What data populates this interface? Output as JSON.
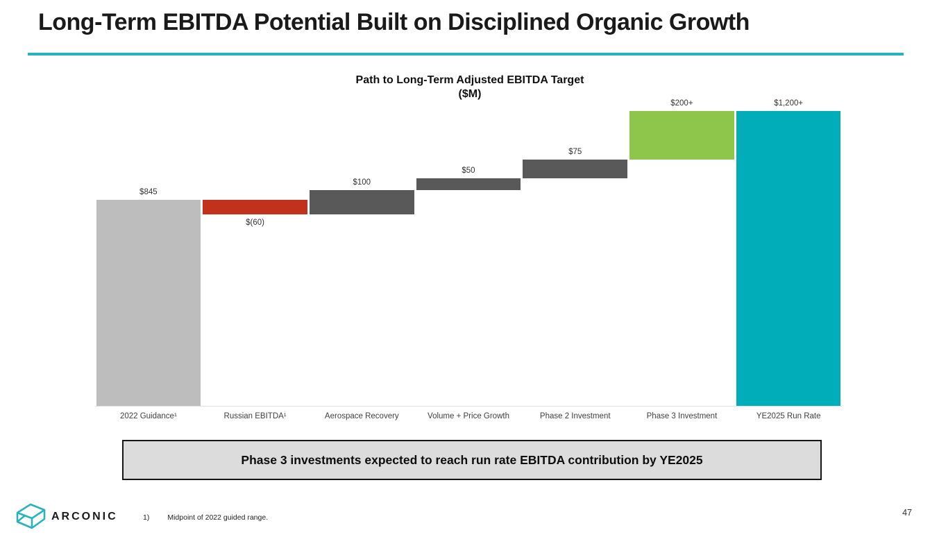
{
  "slide": {
    "title": "Long-Term EBITDA Potential Built on Disciplined Organic Growth",
    "accent_color": "#29b3be",
    "callout": "Phase 3 investments expected to reach run rate EBITDA contribution by YE2025",
    "footnote_marker": "1)",
    "footnote_text": "Midpoint of 2022 guided range.",
    "brand": "ARCONIC",
    "page_number": "47"
  },
  "chart_data": {
    "type": "bar",
    "subtype": "waterfall",
    "title": "Path to Long-Term Adjusted EBITDA Target",
    "subtitle": "($M)",
    "ylim": [
      0,
      1210
    ],
    "grid": false,
    "legend": false,
    "bars": [
      {
        "category": "2022 Guidance¹",
        "value": 845,
        "kind": "total",
        "label": "$845",
        "label_position": "above",
        "color": "#bdbdbd"
      },
      {
        "category": "Russian EBITDA¹",
        "value": -60,
        "kind": "delta",
        "label": "$(60)",
        "label_position": "below",
        "color": "#c2311b"
      },
      {
        "category": "Aerospace Recovery",
        "value": 100,
        "kind": "delta",
        "label": "$100",
        "label_position": "above",
        "color": "#595959"
      },
      {
        "category": "Volume + Price Growth",
        "value": 50,
        "kind": "delta",
        "label": "$50",
        "label_position": "above",
        "color": "#595959"
      },
      {
        "category": "Phase 2 Investment",
        "value": 75,
        "kind": "delta",
        "label": "$75",
        "label_position": "above",
        "color": "#595959"
      },
      {
        "category": "Phase 3 Investment",
        "value": 200,
        "kind": "delta",
        "label": "$200+",
        "label_position": "above",
        "color": "#8dc64a"
      },
      {
        "category": "YE2025 Run Rate",
        "value": 1210,
        "kind": "total",
        "label": "$1,200+",
        "label_position": "above",
        "color": "#00adb8"
      }
    ]
  }
}
